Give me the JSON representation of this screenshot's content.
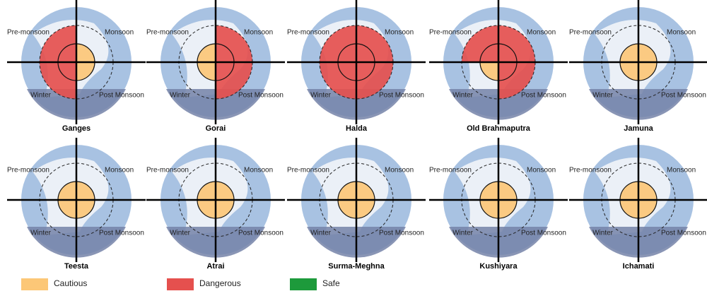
{
  "chart_data": [
    {
      "type": "polar",
      "title": "Ganges",
      "categories": [
        "Pre-monsoon",
        "Monsoon",
        "Post Monsoon",
        "Winter"
      ],
      "values": [
        "Dangerous",
        "Cautious",
        "Cautious",
        "Dangerous"
      ]
    },
    {
      "type": "polar",
      "title": "Gorai",
      "categories": [
        "Pre-monsoon",
        "Monsoon",
        "Post Monsoon",
        "Winter"
      ],
      "values": [
        "Cautious",
        "Dangerous",
        "Dangerous",
        "Cautious"
      ]
    },
    {
      "type": "polar",
      "title": "Halda",
      "categories": [
        "Pre-monsoon",
        "Monsoon",
        "Post Monsoon",
        "Winter"
      ],
      "values": [
        "Dangerous",
        "Dangerous",
        "Dangerous",
        "Dangerous"
      ]
    },
    {
      "type": "polar",
      "title": "Old Brahmaputra",
      "categories": [
        "Pre-monsoon",
        "Monsoon",
        "Post Monsoon",
        "Winter"
      ],
      "values": [
        "Dangerous",
        "Dangerous",
        "Dangerous",
        "Cautious"
      ]
    },
    {
      "type": "polar",
      "title": "Jamuna",
      "categories": [
        "Pre-monsoon",
        "Monsoon",
        "Post Monsoon",
        "Winter"
      ],
      "values": [
        "Cautious",
        "Cautious",
        "Cautious",
        "Cautious"
      ]
    },
    {
      "type": "polar",
      "title": "Teesta",
      "categories": [
        "Pre-monsoon",
        "Monsoon",
        "Post Monsoon",
        "Winter"
      ],
      "values": [
        "Cautious",
        "Cautious",
        "Cautious",
        "Cautious"
      ]
    },
    {
      "type": "polar",
      "title": "Atrai",
      "categories": [
        "Pre-monsoon",
        "Monsoon",
        "Post Monsoon",
        "Winter"
      ],
      "values": [
        "Cautious",
        "Cautious",
        "Cautious",
        "Cautious"
      ]
    },
    {
      "type": "polar",
      "title": "Surma-Meghna",
      "categories": [
        "Pre-monsoon",
        "Monsoon",
        "Post Monsoon",
        "Winter"
      ],
      "values": [
        "Cautious",
        "Cautious",
        "Cautious",
        "Cautious"
      ]
    },
    {
      "type": "polar",
      "title": "Kushiyara",
      "categories": [
        "Pre-monsoon",
        "Monsoon",
        "Post Monsoon",
        "Winter"
      ],
      "values": [
        "Cautious",
        "Cautious",
        "Cautious",
        "Cautious"
      ]
    },
    {
      "type": "polar",
      "title": "Ichamati",
      "categories": [
        "Pre-monsoon",
        "Monsoon",
        "Post Monsoon",
        "Winter"
      ],
      "values": [
        "Cautious",
        "Cautious",
        "Cautious",
        "Cautious"
      ]
    }
  ],
  "legend": [
    {
      "name": "Cautious",
      "color": "#fcc777"
    },
    {
      "name": "Dangerous",
      "color": "#e5504e"
    },
    {
      "name": "Safe",
      "color": "#1d9a3b"
    }
  ]
}
